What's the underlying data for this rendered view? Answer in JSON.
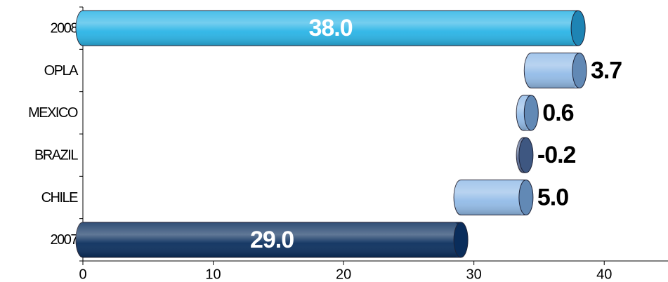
{
  "chart_data": {
    "type": "waterfall",
    "categories": [
      "2008",
      "OPLA",
      "MEXICO",
      "BRAZIL",
      "CHILE",
      "2007"
    ],
    "values": [
      38.0,
      3.7,
      0.6,
      -0.2,
      5.0,
      29.0
    ],
    "value_labels": [
      "38.0",
      "3.7",
      "0.6",
      "-0.2",
      "5.0",
      "29.0"
    ],
    "colors": [
      "#2ab4e6",
      "#93bce8",
      "#93bce8",
      "#5b6f99",
      "#93bce8",
      "#0b2f5e"
    ],
    "xlim": [
      0,
      45
    ],
    "xticks": [
      0,
      10,
      20,
      30,
      40
    ]
  }
}
